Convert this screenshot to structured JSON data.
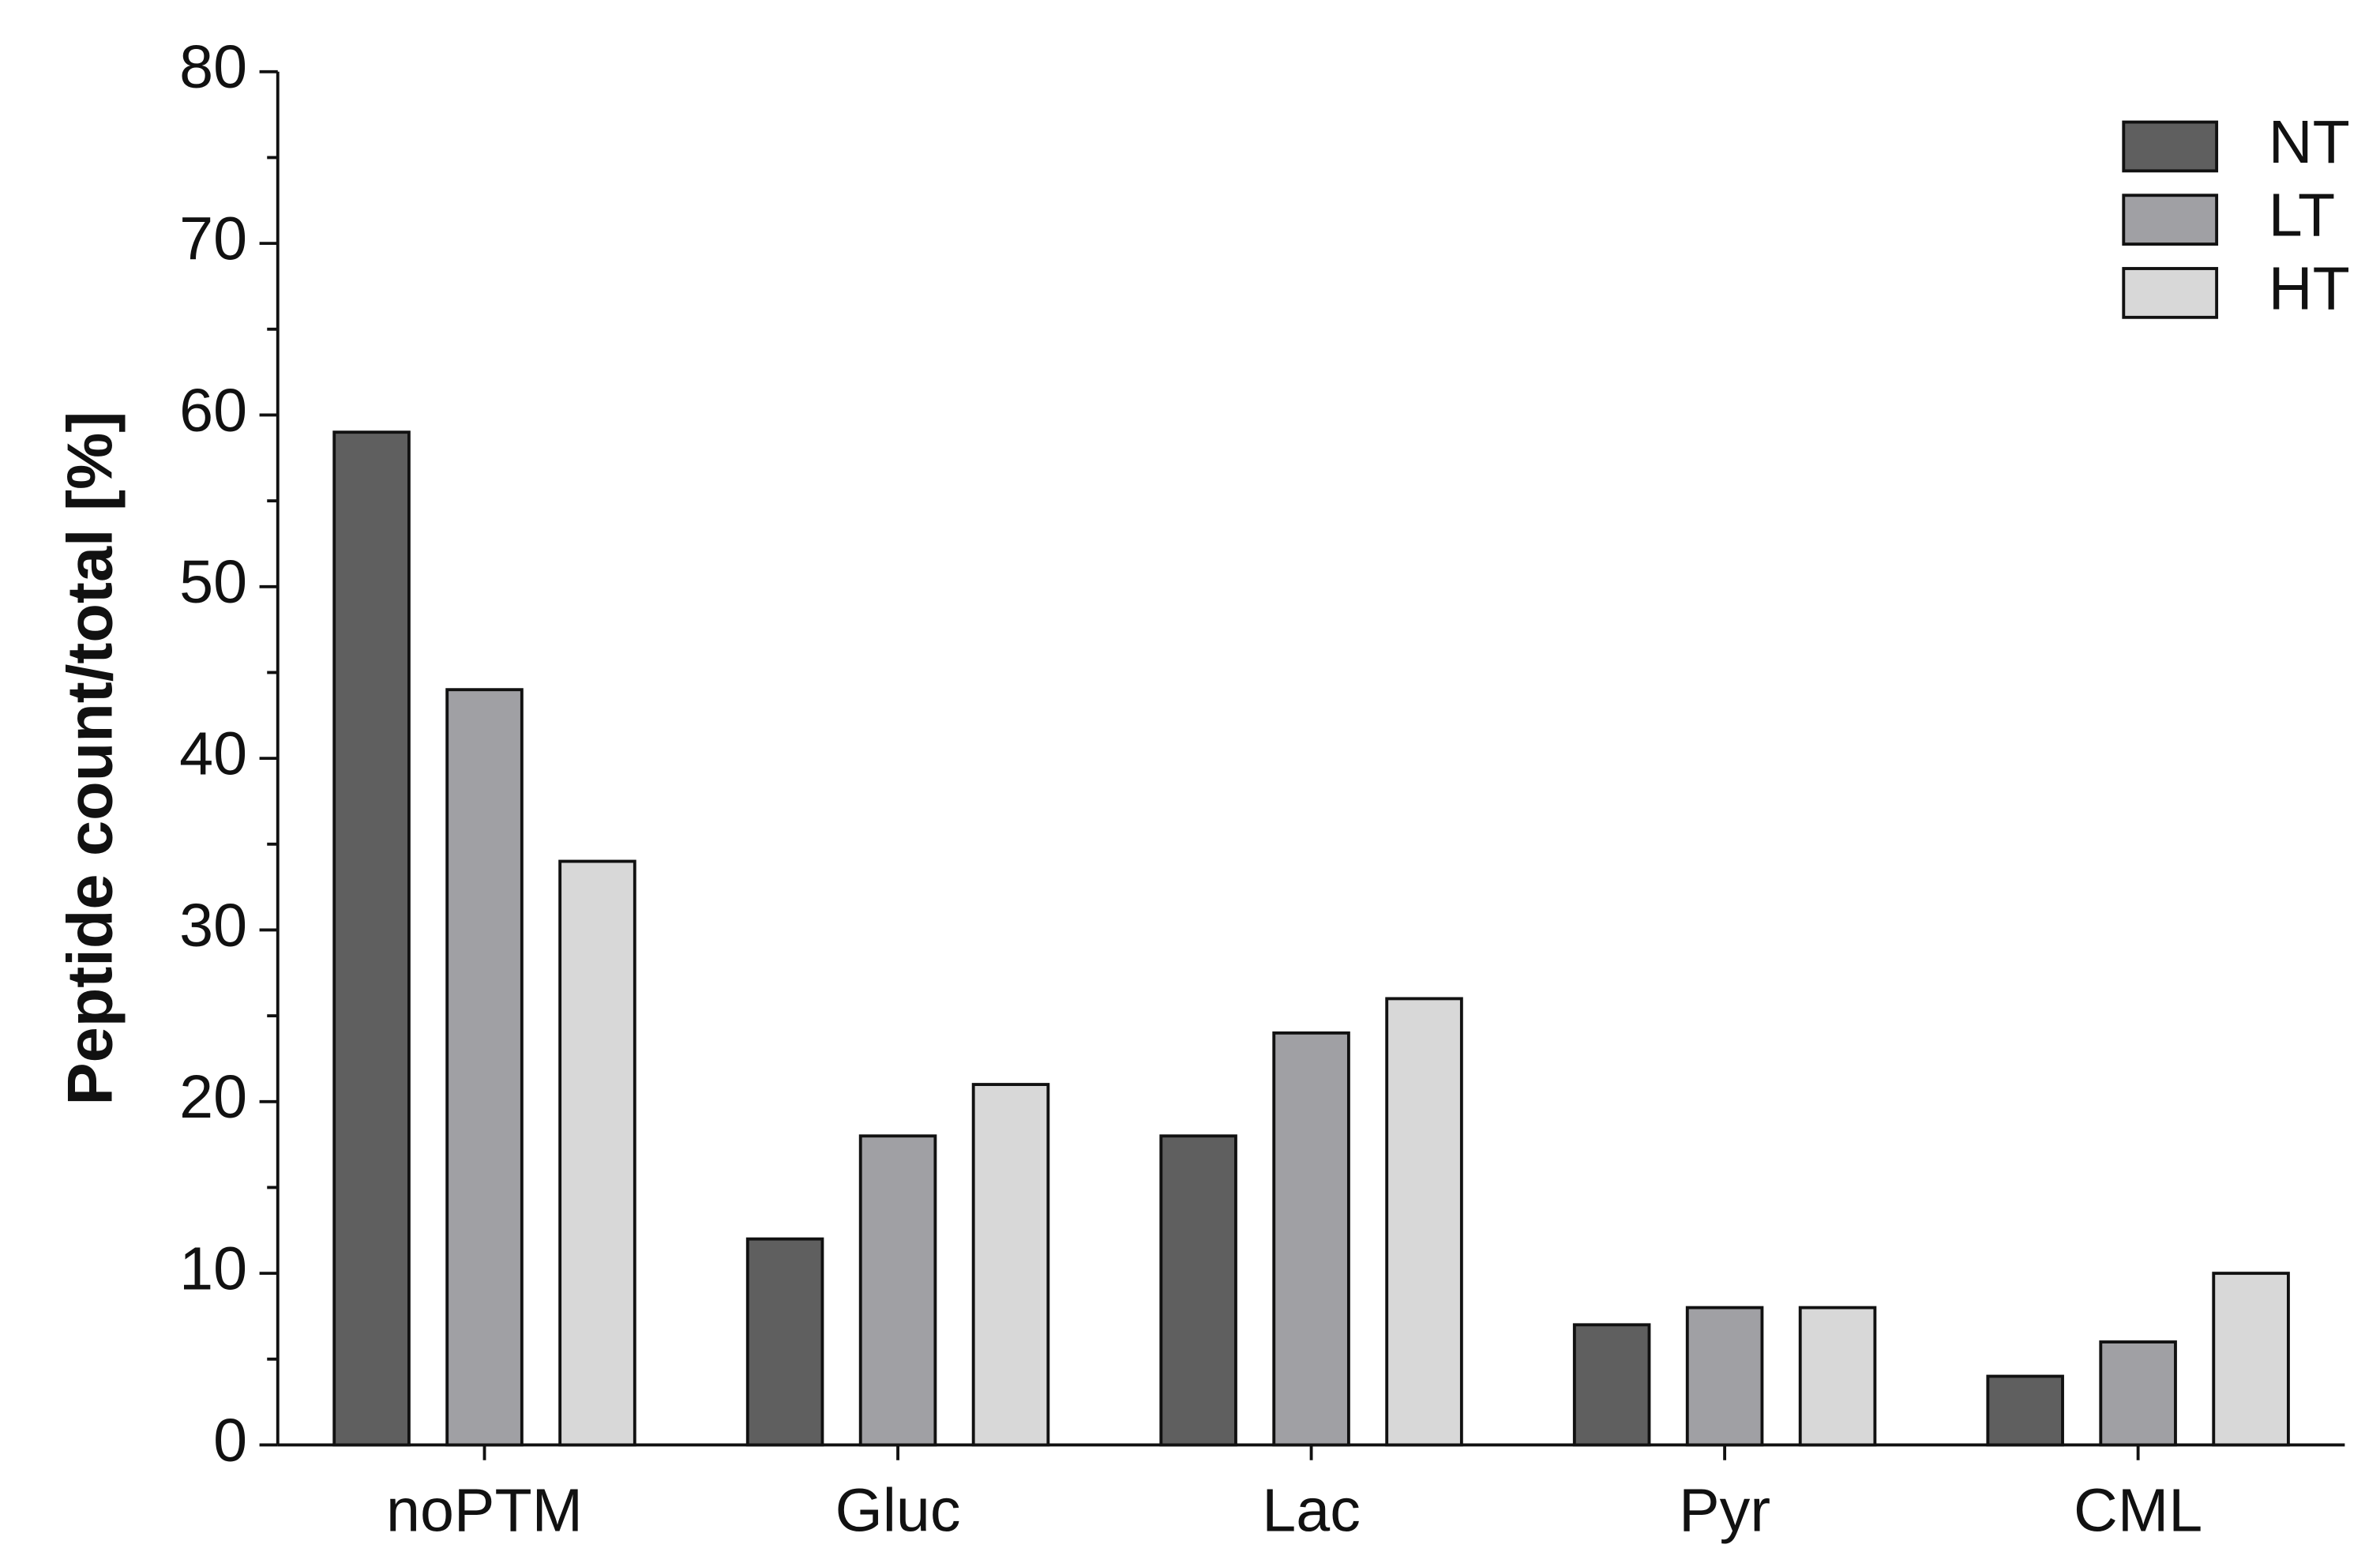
{
  "chart_data": {
    "type": "bar",
    "y_label": "Peptide count/total [%]",
    "categories": [
      "noPTM",
      "Gluc",
      "Lac",
      "Pyr",
      "CML"
    ],
    "series": [
      {
        "name": "NT",
        "color": "#5f5f5f",
        "values": [
          59,
          12,
          18,
          7,
          4
        ]
      },
      {
        "name": "LT",
        "color": "#a0a0a4",
        "values": [
          44,
          18,
          24,
          8,
          6
        ]
      },
      {
        "name": "HT",
        "color": "#d8d8d8",
        "values": [
          34,
          21,
          26,
          8,
          10
        ]
      }
    ],
    "ylim": [
      0,
      80
    ],
    "yticks": [
      0,
      10,
      20,
      30,
      40,
      50,
      60,
      70,
      80
    ],
    "minor_yticks": [
      5,
      15,
      25,
      35,
      45,
      55,
      65,
      75
    ],
    "grid": false,
    "legend": "top-right"
  }
}
